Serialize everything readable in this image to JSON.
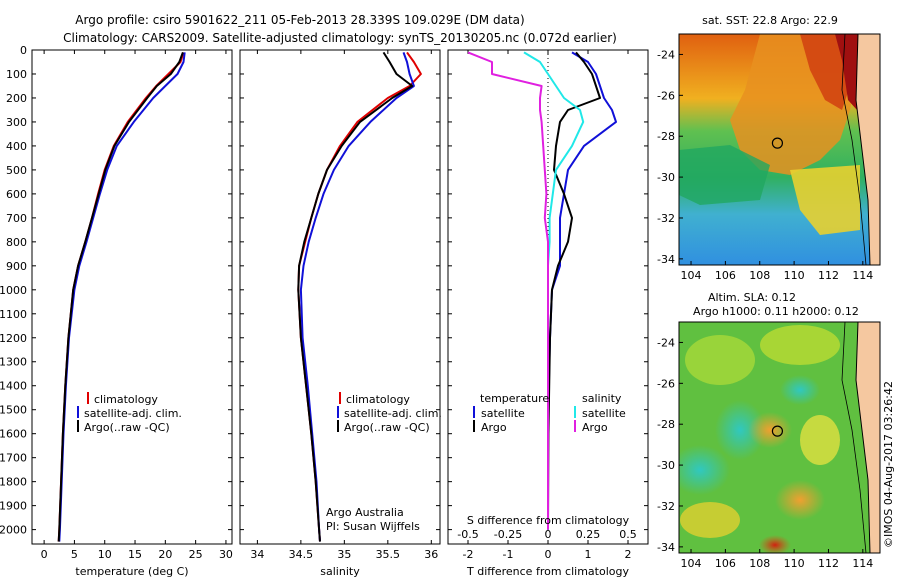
{
  "header": {
    "line1": "Argo profile: csiro 5901622_211 05-Feb-2013 28.339S 109.029E (DM data)",
    "line2": "Climatology: CARS2009. Satellite-adjusted climatology: synTS_20130205.nc (0.072d earlier)"
  },
  "colors": {
    "climatology": "#e00000",
    "satellite": "#1010d8",
    "argo": "#000000",
    "salinity_satellite": "#20e8e8",
    "salinity_argo": "#e020e0"
  },
  "footer": {
    "argo_australia": "Argo Australia",
    "pi": "PI: Susan Wijffels",
    "credit": "©IMOS 04-Aug-2017 03:26:42"
  },
  "maps": {
    "sst": {
      "title": "sat. SST: 22.8 Argo: 22.9",
      "xticks": [
        "104",
        "106",
        "108",
        "110",
        "112",
        "114"
      ],
      "yticks": [
        "-24",
        "-26",
        "-28",
        "-30",
        "-32",
        "-34"
      ],
      "argo_position": {
        "lon": 109.029,
        "lat": -28.339
      }
    },
    "sla": {
      "title1": "Altim. SLA: 0.12",
      "title2": "Argo h1000: 0.11 h2000: 0.12",
      "xticks": [
        "104",
        "106",
        "108",
        "110",
        "112",
        "114"
      ],
      "yticks": [
        "-24",
        "-26",
        "-28",
        "-30",
        "-32",
        "-34"
      ],
      "argo_position": {
        "lon": 109.029,
        "lat": -28.339
      }
    }
  },
  "chart_data": [
    {
      "type": "line",
      "xlabel": "temperature (deg C)",
      "xlim": [
        -2,
        31
      ],
      "xticks": [
        "0",
        "5",
        "10",
        "15",
        "20",
        "25",
        "30"
      ],
      "ylim": [
        0,
        2060
      ],
      "yticks": [
        "0",
        "100",
        "200",
        "300",
        "400",
        "500",
        "600",
        "700",
        "800",
        "900",
        "1000",
        "1100",
        "1200",
        "1300",
        "1400",
        "1500",
        "1600",
        "1700",
        "1800",
        "1900",
        "2000"
      ],
      "legend": [
        "climatology",
        "satellite-adj. clim.",
        "Argo(..raw -QC)"
      ],
      "depth": [
        10,
        50,
        100,
        150,
        200,
        300,
        400,
        500,
        600,
        700,
        800,
        900,
        1000,
        1200,
        1400,
        1600,
        1800,
        2000,
        2050
      ],
      "series": [
        {
          "name": "climatology",
          "values": [
            23.0,
            22.5,
            20.5,
            18.5,
            16.8,
            13.8,
            11.5,
            10.0,
            8.9,
            7.9,
            6.8,
            5.6,
            4.8,
            4.0,
            3.5,
            3.1,
            2.8,
            2.5,
            2.4
          ]
        },
        {
          "name": "satellite-adj. clim.",
          "values": [
            23.2,
            23.0,
            22.0,
            20.0,
            18.0,
            14.8,
            12.0,
            10.4,
            9.2,
            8.1,
            7.0,
            5.8,
            5.0,
            4.1,
            3.6,
            3.2,
            2.9,
            2.6,
            2.5
          ]
        },
        {
          "name": "Argo(..raw -QC)",
          "values": [
            22.9,
            22.3,
            20.9,
            18.6,
            17.0,
            14.0,
            11.6,
            10.1,
            9.0,
            7.9,
            6.8,
            5.6,
            4.8,
            4.0,
            3.5,
            3.1,
            2.8,
            2.5,
            2.4
          ]
        }
      ]
    },
    {
      "type": "line",
      "xlabel": "salinity",
      "xlim": [
        33.8,
        36.1
      ],
      "xticks": [
        "34",
        "34.5",
        "35",
        "35.5",
        "36"
      ],
      "ylim": [
        0,
        2060
      ],
      "legend": [
        "climatology",
        "satellite-adj. clim.",
        "Argo(..raw -QC)"
      ],
      "depth": [
        10,
        50,
        100,
        150,
        200,
        300,
        400,
        500,
        600,
        700,
        800,
        900,
        1000,
        1200,
        1400,
        1600,
        1800,
        2000,
        2050
      ],
      "series": [
        {
          "name": "climatology",
          "values": [
            35.72,
            35.8,
            35.88,
            35.75,
            35.5,
            35.15,
            34.95,
            34.8,
            34.7,
            34.62,
            34.55,
            34.48,
            34.47,
            34.5,
            34.56,
            34.62,
            34.67,
            34.71,
            34.72
          ]
        },
        {
          "name": "satellite-adj. clim.",
          "values": [
            35.68,
            35.72,
            35.75,
            35.8,
            35.6,
            35.3,
            35.05,
            34.88,
            34.76,
            34.67,
            34.59,
            34.53,
            34.5,
            34.52,
            34.58,
            34.63,
            34.68,
            34.71,
            34.72
          ]
        },
        {
          "name": "Argo(..raw -QC)",
          "values": [
            35.45,
            35.52,
            35.6,
            35.78,
            35.55,
            35.18,
            34.97,
            34.8,
            34.7,
            34.62,
            34.54,
            34.48,
            34.47,
            34.5,
            34.56,
            34.62,
            34.67,
            34.71,
            34.72
          ]
        }
      ]
    },
    {
      "type": "line",
      "xlabel": "T difference from climatology",
      "xlabel_top": "S difference from climatology",
      "xlim_T": [
        -2.5,
        2.5
      ],
      "xticks_T": [
        "-2",
        "-1",
        "0",
        "1",
        "2"
      ],
      "xlim_S": [
        -0.625,
        0.625
      ],
      "xticks_S": [
        "-0.5",
        "-0.25",
        "0",
        "0.25",
        "0.5"
      ],
      "ylim": [
        0,
        2060
      ],
      "legend_temperature_title": "temperature",
      "legend_salinity_title": "salinity",
      "legend": [
        "satellite",
        "Argo",
        "satellite",
        "Argo"
      ],
      "depth": [
        10,
        50,
        100,
        150,
        200,
        250,
        300,
        400,
        500,
        600,
        700,
        800,
        900,
        1000,
        1200,
        1400,
        1600,
        2000
      ],
      "series": [
        {
          "name": "T satellite",
          "values": [
            0.6,
            1.0,
            1.2,
            1.3,
            1.4,
            1.6,
            1.7,
            0.9,
            0.5,
            0.4,
            0.3,
            0.3,
            0.3,
            0.1,
            0.05,
            0.02,
            0.0,
            0.0
          ]
        },
        {
          "name": "T Argo",
          "values": [
            0.7,
            0.9,
            1.1,
            1.2,
            1.3,
            0.5,
            0.3,
            0.2,
            0.15,
            0.4,
            0.6,
            0.5,
            0.25,
            0.1,
            0.05,
            0.03,
            0.01,
            0.0
          ]
        },
        {
          "name": "S satellite",
          "values": [
            -0.15,
            -0.05,
            0.0,
            0.05,
            0.1,
            0.2,
            0.22,
            0.15,
            0.05,
            0.03,
            0.01,
            0.01,
            0.0,
            0.0,
            0.0,
            0.0,
            0.0,
            0.0
          ]
        },
        {
          "name": "S Argo",
          "values": [
            -0.5,
            -0.35,
            -0.35,
            -0.04,
            -0.05,
            -0.05,
            -0.04,
            -0.03,
            -0.02,
            -0.01,
            -0.02,
            0.0,
            0.0,
            0.0,
            0.0,
            0.0,
            0.0,
            0.0
          ]
        }
      ]
    }
  ]
}
